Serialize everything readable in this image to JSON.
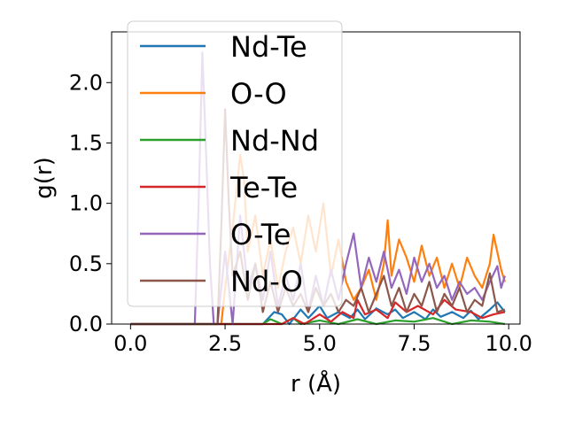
{
  "chart_data": {
    "type": "line",
    "xlabel": "r (Å)",
    "ylabel": "g(r)",
    "xlim": [
      -0.5,
      10.3
    ],
    "ylim": [
      0.0,
      2.42
    ],
    "xticks": [
      0.0,
      2.5,
      5.0,
      7.5,
      10.0
    ],
    "xtick_labels": [
      "0.0",
      "2.5",
      "5.0",
      "7.5",
      "10.0"
    ],
    "yticks": [
      0.0,
      0.5,
      1.0,
      1.5,
      2.0
    ],
    "ytick_labels": [
      "0.0",
      "0.5",
      "1.0",
      "1.5",
      "2.0"
    ],
    "grid": false,
    "legend_position": "top-left",
    "series": [
      {
        "name": "Nd-Te",
        "color": "#1f77b4",
        "x": [
          0.0,
          2.5,
          3.0,
          3.5,
          3.8,
          4.0,
          4.2,
          4.5,
          4.7,
          5.0,
          5.2,
          5.5,
          5.8,
          6.0,
          6.2,
          6.5,
          6.8,
          7.0,
          7.2,
          7.5,
          7.8,
          8.0,
          8.2,
          8.5,
          8.8,
          9.0,
          9.2,
          9.5,
          9.7,
          9.9
        ],
        "y": [
          0.0,
          0.0,
          0.0,
          0.0,
          0.1,
          0.08,
          0.0,
          0.12,
          0.05,
          0.15,
          0.05,
          0.1,
          0.05,
          0.12,
          0.04,
          0.13,
          0.08,
          0.12,
          0.05,
          0.1,
          0.04,
          0.12,
          0.06,
          0.1,
          0.05,
          0.11,
          0.04,
          0.12,
          0.18,
          0.1
        ]
      },
      {
        "name": "O-O",
        "color": "#ff7f0e",
        "x": [
          0.0,
          2.4,
          2.5,
          2.7,
          2.9,
          3.0,
          3.1,
          3.3,
          3.5,
          3.7,
          3.9,
          4.1,
          4.3,
          4.5,
          4.7,
          4.9,
          5.1,
          5.3,
          5.5,
          5.7,
          5.9,
          6.1,
          6.3,
          6.5,
          6.7,
          6.8,
          6.9,
          7.1,
          7.3,
          7.5,
          7.7,
          7.9,
          8.1,
          8.3,
          8.5,
          8.7,
          8.9,
          9.1,
          9.3,
          9.5,
          9.6,
          9.8,
          9.9
        ],
        "y": [
          0.0,
          0.0,
          0.3,
          0.8,
          1.4,
          1.2,
          0.6,
          0.9,
          0.4,
          0.7,
          0.3,
          0.6,
          0.8,
          0.5,
          0.9,
          0.6,
          1.0,
          0.4,
          0.7,
          0.35,
          0.2,
          0.3,
          0.45,
          0.2,
          0.5,
          0.86,
          0.4,
          0.7,
          0.55,
          0.35,
          0.65,
          0.4,
          0.55,
          0.3,
          0.5,
          0.3,
          0.55,
          0.4,
          0.3,
          0.5,
          0.74,
          0.45,
          0.35
        ]
      },
      {
        "name": "Nd-Nd",
        "color": "#2ca02c",
        "x": [
          0.0,
          3.0,
          3.5,
          3.7,
          4.0,
          4.3,
          4.5,
          5.0,
          5.5,
          6.0,
          6.5,
          7.0,
          7.5,
          8.0,
          8.5,
          9.0,
          9.5,
          9.9
        ],
        "y": [
          0.0,
          0.0,
          0.0,
          0.04,
          0.0,
          0.05,
          0.0,
          0.03,
          0.0,
          0.04,
          0.0,
          0.03,
          0.02,
          0.05,
          0.0,
          0.03,
          0.02,
          0.0
        ]
      },
      {
        "name": "Te-Te",
        "color": "#d62728",
        "x": [
          0.0,
          3.0,
          3.5,
          4.0,
          4.3,
          4.6,
          5.0,
          5.3,
          5.6,
          5.9,
          6.0,
          6.2,
          6.5,
          6.8,
          7.0,
          7.3,
          7.6,
          8.0,
          8.3,
          8.6,
          9.0,
          9.3,
          9.6,
          9.9
        ],
        "y": [
          0.0,
          0.0,
          0.0,
          0.0,
          0.05,
          0.0,
          0.08,
          0.02,
          0.1,
          0.05,
          0.2,
          0.08,
          0.12,
          0.05,
          0.18,
          0.1,
          0.15,
          0.08,
          0.2,
          0.12,
          0.1,
          0.05,
          0.08,
          0.1
        ]
      },
      {
        "name": "O-Te",
        "color": "#9467bd",
        "x": [
          0.0,
          1.7,
          1.8,
          1.9,
          2.0,
          2.1,
          2.2,
          2.3,
          2.5,
          2.7,
          2.9,
          3.1,
          3.3,
          3.5,
          3.7,
          3.9,
          4.1,
          4.3,
          4.5,
          4.7,
          4.9,
          5.1,
          5.3,
          5.5,
          5.7,
          5.9,
          6.1,
          6.3,
          6.5,
          6.7,
          6.9,
          7.1,
          7.3,
          7.5,
          7.7,
          7.9,
          8.1,
          8.3,
          8.5,
          8.7,
          8.9,
          9.1,
          9.3,
          9.5,
          9.7,
          9.8,
          9.9
        ],
        "y": [
          0.0,
          0.0,
          1.0,
          2.25,
          1.4,
          0.5,
          0.0,
          0.0,
          0.6,
          0.0,
          0.9,
          0.3,
          0.5,
          0.2,
          0.6,
          0.15,
          0.4,
          0.2,
          0.5,
          0.1,
          0.4,
          0.15,
          0.45,
          0.2,
          0.5,
          0.75,
          0.3,
          0.55,
          0.35,
          0.6,
          0.3,
          0.45,
          0.25,
          0.55,
          0.35,
          0.5,
          0.3,
          0.4,
          0.2,
          0.35,
          0.25,
          0.3,
          0.2,
          0.35,
          0.48,
          0.3,
          0.4
        ]
      },
      {
        "name": "Nd-O",
        "color": "#8c564b",
        "x": [
          0.0,
          2.3,
          2.4,
          2.5,
          2.6,
          2.7,
          2.9,
          3.1,
          3.3,
          3.5,
          3.7,
          3.9,
          4.1,
          4.3,
          4.5,
          4.7,
          4.9,
          5.1,
          5.3,
          5.5,
          5.7,
          5.9,
          6.1,
          6.3,
          6.5,
          6.7,
          6.9,
          7.1,
          7.3,
          7.5,
          7.7,
          7.9,
          8.1,
          8.3,
          8.5,
          8.7,
          8.9,
          9.1,
          9.3,
          9.5,
          9.7,
          9.9
        ],
        "y": [
          0.0,
          0.0,
          0.8,
          1.78,
          1.0,
          0.4,
          0.6,
          0.2,
          0.5,
          0.1,
          0.35,
          0.1,
          0.3,
          0.15,
          0.25,
          0.1,
          0.3,
          0.15,
          0.25,
          0.1,
          0.2,
          0.15,
          0.3,
          0.1,
          0.25,
          0.4,
          0.15,
          0.3,
          0.1,
          0.25,
          0.15,
          0.35,
          0.1,
          0.25,
          0.15,
          0.3,
          0.1,
          0.2,
          0.15,
          0.42,
          0.1,
          0.12
        ]
      }
    ]
  }
}
